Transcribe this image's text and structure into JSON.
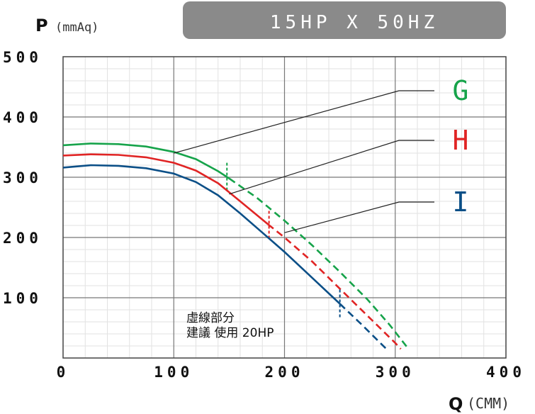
{
  "chart_data": {
    "type": "line",
    "title": "15HP X 50HZ",
    "ylabel_symbol": "P",
    "ylabel_unit": "(mmAq)",
    "xlabel_symbol": "Q",
    "xlabel_unit": "(CMM)",
    "xlim": [
      0,
      400
    ],
    "ylim": [
      0,
      500
    ],
    "x_ticks": [
      "0",
      "100",
      "200",
      "300",
      "400"
    ],
    "y_ticks": [
      "100",
      "200",
      "300",
      "400",
      "500"
    ],
    "grid": true,
    "note_line1": "虛線部分",
    "note_line2": "建議 使用 20HP",
    "series": [
      {
        "name": "G",
        "color": "#16a34a",
        "solid": [
          [
            0,
            353
          ],
          [
            25,
            356
          ],
          [
            50,
            355
          ],
          [
            75,
            351
          ],
          [
            100,
            342
          ],
          [
            120,
            330
          ],
          [
            140,
            310
          ],
          [
            150,
            298
          ]
        ],
        "dashed": [
          [
            150,
            298
          ],
          [
            175,
            266
          ],
          [
            200,
            228
          ],
          [
            225,
            187
          ],
          [
            250,
            143
          ],
          [
            275,
            97
          ],
          [
            295,
            55
          ],
          [
            312,
            15
          ]
        ],
        "marker_x": 148
      },
      {
        "name": "H",
        "color": "#e02424",
        "solid": [
          [
            0,
            336
          ],
          [
            25,
            338
          ],
          [
            50,
            337
          ],
          [
            75,
            333
          ],
          [
            100,
            324
          ],
          [
            120,
            311
          ],
          [
            140,
            290
          ],
          [
            160,
            260
          ],
          [
            185,
            222
          ]
        ],
        "dashed": [
          [
            185,
            222
          ],
          [
            200,
            200
          ],
          [
            225,
            160
          ],
          [
            250,
            115
          ],
          [
            275,
            70
          ],
          [
            300,
            25
          ],
          [
            305,
            15
          ]
        ],
        "marker_x": 186
      },
      {
        "name": "I",
        "color": "#0b4f87",
        "solid": [
          [
            0,
            316
          ],
          [
            25,
            320
          ],
          [
            50,
            319
          ],
          [
            75,
            315
          ],
          [
            100,
            306
          ],
          [
            120,
            292
          ],
          [
            140,
            270
          ],
          [
            160,
            240
          ],
          [
            180,
            208
          ],
          [
            200,
            176
          ],
          [
            225,
            133
          ],
          [
            250,
            90
          ]
        ],
        "dashed": [
          [
            250,
            90
          ],
          [
            270,
            55
          ],
          [
            292,
            15
          ]
        ],
        "marker_x": 250
      }
    ]
  }
}
